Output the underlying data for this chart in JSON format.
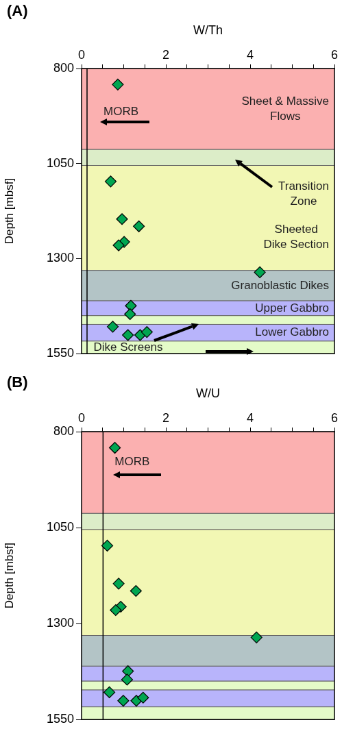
{
  "chart_data": [
    {
      "type": "scatter",
      "title": "(A)",
      "xlabel": "W/Th",
      "ylabel": "Depth [mbsf]",
      "x": [
        0.86,
        0.69,
        0.96,
        1.36,
        1.01,
        0.88,
        4.23,
        1.17,
        1.15,
        0.74,
        1.1,
        1.39,
        1.55
      ],
      "values": [
        842,
        1097,
        1196,
        1215,
        1256,
        1265,
        1336,
        1424,
        1446,
        1479,
        1501,
        1501,
        1493
      ],
      "color": "#00a651",
      "marker": "diamond",
      "xlim": [
        0,
        6
      ],
      "xticks": [
        0,
        {
          "value": 0.5,
          "label": null
        },
        2,
        {
          "value": 1,
          "label": null
        },
        {
          "value": 1.5,
          "label": null
        },
        {
          "value": 2.5,
          "label": null
        },
        {
          "value": 3,
          "label": null
        },
        {
          "value": 3.5,
          "label": null
        },
        4,
        {
          "value": 4.5,
          "label": null
        },
        {
          "value": 5,
          "label": null
        },
        {
          "value": 5.5,
          "label": null
        },
        6
      ],
      "ylim": [
        1550,
        800
      ],
      "yticks": [
        800,
        1050,
        1300,
        1550
      ],
      "grid": false,
      "ref_lines": [
        {
          "axis": "x",
          "value": 0.13,
          "label": "MORB",
          "color": "#000000"
        }
      ],
      "bands": [
        {
          "axis": "y",
          "from": 800,
          "to": 1013,
          "label": "Sheet & Massive\nFlows",
          "color": "#fbb0b0"
        },
        {
          "axis": "y",
          "from": 1013,
          "to": 1055,
          "label": "Transition\nZone",
          "color": "#dcedc8"
        },
        {
          "axis": "y",
          "from": 1055,
          "to": 1331,
          "label": "Sheeted\nDike Section",
          "color": "#f2f7b4"
        },
        {
          "axis": "y",
          "from": 1331,
          "to": 1411,
          "label": "Granoblastic Dikes",
          "color": "#b3c4c6"
        },
        {
          "axis": "y",
          "from": 1411,
          "to": 1450,
          "label": "Upper Gabbro",
          "color": "#b8b4fb"
        },
        {
          "axis": "y",
          "from": 1450,
          "to": 1473,
          "color": "#e4fbc8"
        },
        {
          "axis": "y",
          "from": 1473,
          "to": 1517,
          "label": "Lower Gabbro",
          "color": "#b8b4fb"
        },
        {
          "axis": "y",
          "from": 1517,
          "to": 1550,
          "label": "Dike Screens",
          "color": "#e4fbc8"
        }
      ],
      "legend": false
    },
    {
      "type": "scatter",
      "title": "(B)",
      "xlabel": "W/U",
      "ylabel": "Depth [mbsf]",
      "x": [
        0.79,
        0.61,
        0.88,
        1.29,
        0.93,
        0.81,
        4.15,
        1.1,
        1.08,
        0.66,
        0.99,
        1.3,
        1.46
      ],
      "values": [
        842,
        1097,
        1196,
        1215,
        1256,
        1265,
        1336,
        1424,
        1446,
        1479,
        1501,
        1501,
        1493
      ],
      "color": "#00a651",
      "marker": "diamond",
      "xlim": [
        0,
        6
      ],
      "xticks": [
        0,
        {
          "value": 0.5,
          "label": null
        },
        2,
        {
          "value": 1,
          "label": null
        },
        {
          "value": 1.5,
          "label": null
        },
        {
          "value": 2.5,
          "label": null
        },
        {
          "value": 3,
          "label": null
        },
        {
          "value": 3.5,
          "label": null
        },
        4,
        {
          "value": 4.5,
          "label": null
        },
        {
          "value": 5,
          "label": null
        },
        {
          "value": 5.5,
          "label": null
        },
        6
      ],
      "ylim": [
        1550,
        800
      ],
      "yticks": [
        800,
        1050,
        1300,
        1550
      ],
      "grid": false,
      "legend": false,
      "ref_lines": [
        {
          "axis": "x",
          "value": 0.51,
          "label": "MORB",
          "color": "#000000"
        }
      ],
      "bands": [
        {
          "axis": "y",
          "from": 800,
          "to": 1013,
          "color": "#fbb0b0"
        },
        {
          "axis": "y",
          "from": 1013,
          "to": 1055,
          "color": "#dcedc8"
        },
        {
          "axis": "y",
          "from": 1055,
          "to": 1331,
          "color": "#f2f7b4"
        },
        {
          "axis": "y",
          "from": 1331,
          "to": 1411,
          "color": "#b3c4c6"
        },
        {
          "axis": "y",
          "from": 1411,
          "to": 1450,
          "color": "#b8b4fb"
        },
        {
          "axis": "y",
          "from": 1450,
          "to": 1473,
          "color": "#e4fbc8"
        },
        {
          "axis": "y",
          "from": 1473,
          "to": 1517,
          "color": "#b8b4fb"
        },
        {
          "axis": "y",
          "from": 1517,
          "to": 1550,
          "color": "#e4fbc8"
        }
      ]
    }
  ]
}
